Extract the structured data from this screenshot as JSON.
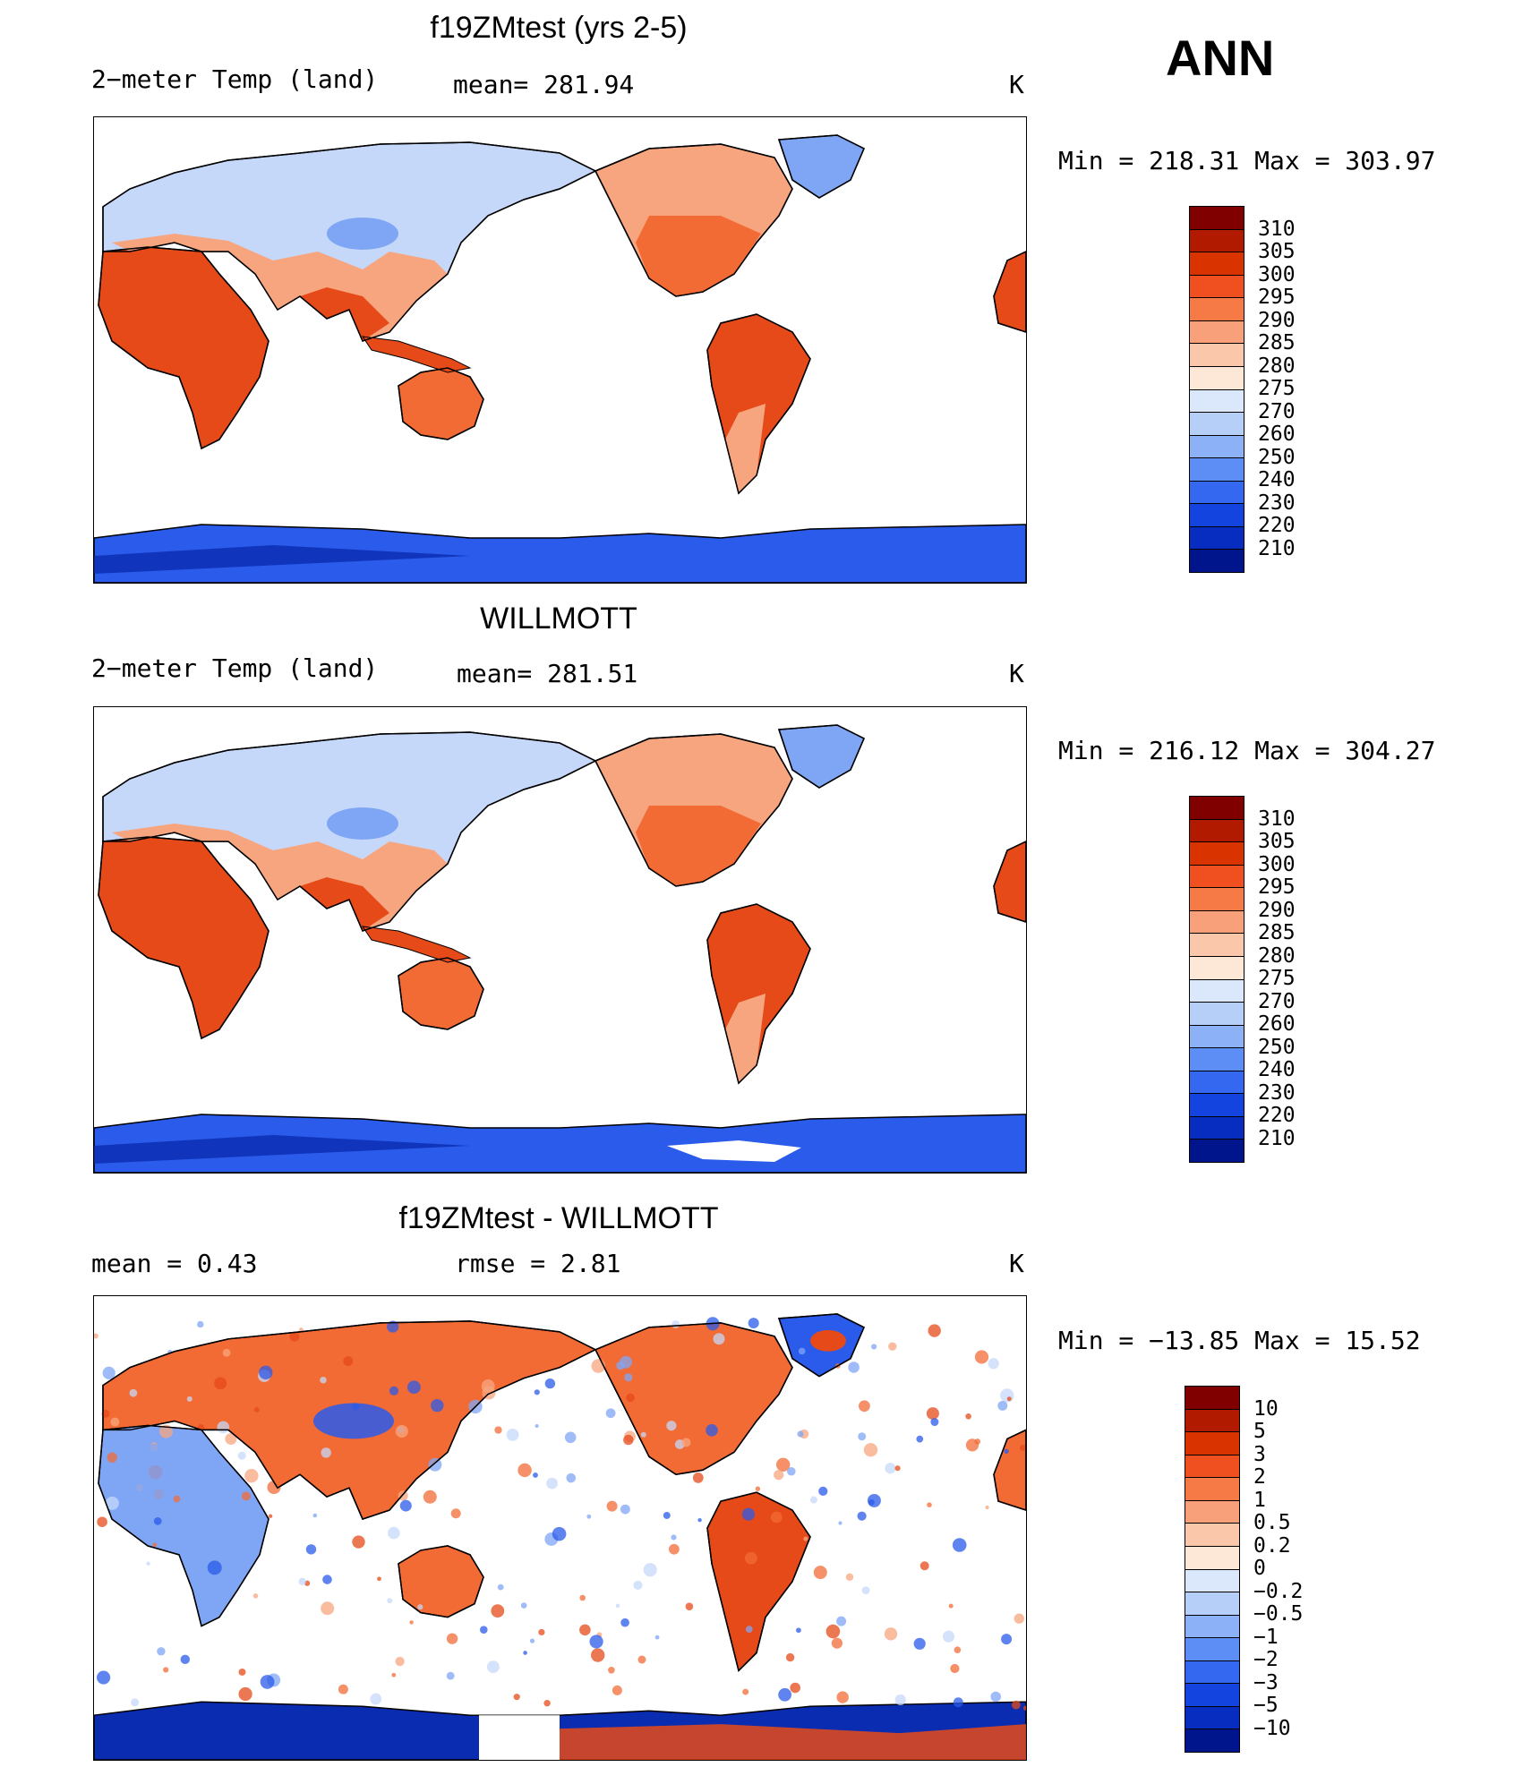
{
  "season": "ANN",
  "units": "K",
  "field_label": "2−meter Temp (land)",
  "panels": [
    {
      "id": "model",
      "title": "f19ZMtest (yrs 2-5)",
      "left_label": "2−meter Temp (land)",
      "mid_label": "mean=  281.94",
      "units": "K",
      "minmax": "Min  =  218.31  Max  =  303.97"
    },
    {
      "id": "obs",
      "title": "WILLMOTT",
      "left_label": "2−meter Temp (land)",
      "mid_label": "mean=  281.51",
      "units": "K",
      "minmax": "Min  =  216.12  Max  =  304.27"
    },
    {
      "id": "diff",
      "title": "f19ZMtest - WILLMOTT",
      "left_label": "mean  =     0.43",
      "mid_label": "rmse  =     2.81",
      "units": "K",
      "minmax": "Min  =  −13.85  Max  =    15.52"
    }
  ],
  "colorbars": {
    "abs": {
      "labels": [
        "310",
        "305",
        "300",
        "295",
        "290",
        "285",
        "280",
        "275",
        "270",
        "260",
        "250",
        "240",
        "230",
        "220",
        "210"
      ],
      "colors": [
        "#800000",
        "#b21a00",
        "#d93300",
        "#f05020",
        "#f57a45",
        "#f8a07a",
        "#fbc7aa",
        "#fde8d8",
        "#dbe8fb",
        "#b6cff9",
        "#8cb1f7",
        "#5c8ef5",
        "#3468f0",
        "#1444e0",
        "#062cc0",
        "#00148c"
      ]
    },
    "diff": {
      "labels": [
        "10",
        "5",
        "3",
        "2",
        "1",
        "0.5",
        "0.2",
        "0",
        "−0.2",
        "−0.5",
        "−1",
        "−2",
        "−3",
        "−5",
        "−10"
      ],
      "colors": [
        "#800000",
        "#b21a00",
        "#d93300",
        "#f05020",
        "#f57a45",
        "#f8a07a",
        "#fbc7aa",
        "#fde8d8",
        "#dbe8fb",
        "#b6cff9",
        "#8cb1f7",
        "#5c8ef5",
        "#3468f0",
        "#1444e0",
        "#062cc0",
        "#00148c"
      ]
    }
  },
  "legend_colors": {
    "hot": "#e64a19",
    "warm": "#f26b35",
    "mild": "#f7a57f",
    "cool": "#c6d8f9",
    "cold": "#7fa6f5",
    "polar": "#2a5bea",
    "deep": "#0a2cb0"
  }
}
